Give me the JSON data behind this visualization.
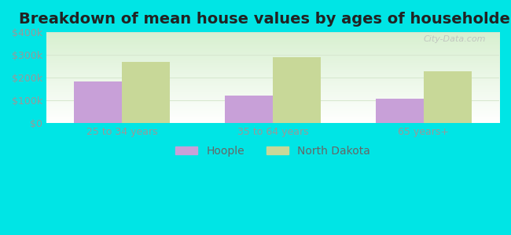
{
  "title": "Breakdown of mean house values by ages of householders",
  "categories": [
    "25 to 34 years",
    "35 to 64 years",
    "65 years+"
  ],
  "series": {
    "Hoople": [
      182000,
      122000,
      108000
    ],
    "North Dakota": [
      268000,
      290000,
      228000
    ]
  },
  "bar_colors": {
    "Hoople": "#c8a0d8",
    "North Dakota": "#c8d898"
  },
  "ylim": [
    0,
    400000
  ],
  "yticks": [
    0,
    100000,
    200000,
    300000,
    400000
  ],
  "ytick_labels": [
    "$0",
    "$100k",
    "$200k",
    "$300k",
    "$400k"
  ],
  "background_outer": "#00e5e5",
  "background_inner": "#e8f8e8",
  "grid_color": "#d8e8d0",
  "title_fontsize": 14,
  "tick_fontsize": 9,
  "legend_fontsize": 10,
  "bar_width": 0.32,
  "watermark": "City-Data.com"
}
